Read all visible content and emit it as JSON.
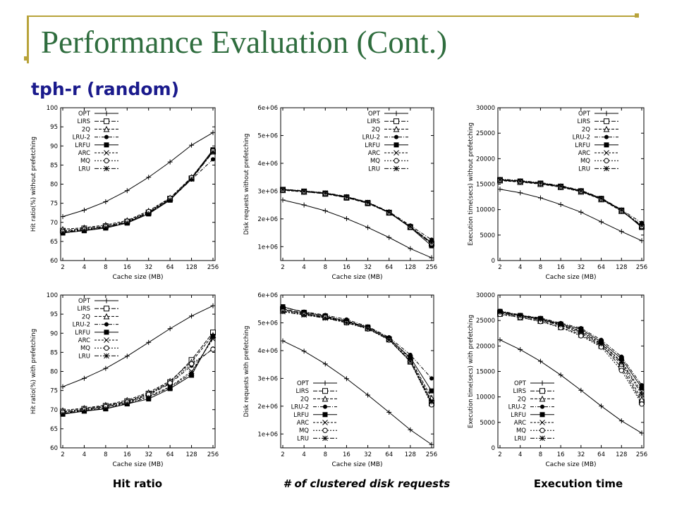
{
  "slide": {
    "title": "Performance Evaluation (Cont.)",
    "subtitle": "tph-r (random)",
    "captions": [
      "Hit ratio",
      "# of clustered disk requests",
      "Execution time"
    ]
  },
  "colors": {
    "title": "#2f6d3e",
    "subtitle": "#1a1a8c",
    "accent": "#b8a33a"
  },
  "legend_labels": [
    "OPT",
    "LIRS",
    "2Q",
    "LRU-2",
    "LRFU",
    "ARC",
    "MQ",
    "LRU"
  ],
  "chart_data": [
    {
      "id": "hit-no-prefetch",
      "type": "line",
      "xlabel": "Cache size (MB)",
      "ylabel": "Hit ratio(%) without prefetching",
      "categories": [
        "2",
        "4",
        "8",
        "16",
        "32",
        "64",
        "128",
        "256"
      ],
      "ylim": [
        60,
        100
      ],
      "yticks": [
        "60",
        "65",
        "70",
        "75",
        "80",
        "85",
        "90",
        "95",
        "100"
      ],
      "legend": "top-left",
      "series": [
        {
          "name": "OPT",
          "values": [
            71.5,
            73.2,
            75.4,
            78.3,
            81.8,
            85.8,
            90.2,
            93.5
          ]
        },
        {
          "name": "LIRS",
          "values": [
            67.8,
            68.4,
            69.0,
            70.2,
            72.6,
            76.2,
            81.5,
            88.5
          ]
        },
        {
          "name": "2Q",
          "values": [
            68.2,
            68.6,
            69.3,
            70.5,
            73.0,
            76.4,
            81.8,
            88.8
          ]
        },
        {
          "name": "LRU-2",
          "values": [
            67.5,
            68.0,
            68.8,
            70.0,
            72.4,
            76.0,
            81.2,
            86.5
          ]
        },
        {
          "name": "LRFU",
          "values": [
            67.2,
            67.8,
            68.5,
            69.8,
            72.2,
            75.8,
            81.6,
            89.0
          ]
        },
        {
          "name": "ARC",
          "values": [
            67.4,
            68.0,
            68.7,
            70.0,
            72.5,
            76.1,
            81.4,
            88.6
          ]
        },
        {
          "name": "MQ",
          "values": [
            67.6,
            68.2,
            68.9,
            70.3,
            72.8,
            76.3,
            81.7,
            88.7
          ]
        },
        {
          "name": "LRU",
          "values": [
            67.3,
            67.9,
            68.6,
            69.9,
            72.3,
            75.9,
            81.3,
            88.4
          ]
        }
      ]
    },
    {
      "id": "disk-no-prefetch",
      "type": "line",
      "xlabel": "Cache size (MB)",
      "ylabel": "Disk requests without prefetching",
      "categories": [
        "2",
        "4",
        "8",
        "16",
        "32",
        "64",
        "128",
        "256"
      ],
      "ylim": [
        500000,
        6000000
      ],
      "yticks": [
        "1e+06",
        "2e+06",
        "3e+06",
        "4e+06",
        "5e+06",
        "6e+06"
      ],
      "legend": "top-right",
      "series": [
        {
          "name": "OPT",
          "values": [
            2680000,
            2500000,
            2290000,
            2010000,
            1690000,
            1330000,
            930000,
            600000
          ]
        },
        {
          "name": "LIRS",
          "values": [
            3050000,
            2980000,
            2900000,
            2760000,
            2560000,
            2220000,
            1700000,
            1100000
          ]
        },
        {
          "name": "2Q",
          "values": [
            3030000,
            2970000,
            2910000,
            2780000,
            2580000,
            2240000,
            1720000,
            1150000
          ]
        },
        {
          "name": "LRU-2",
          "values": [
            3070000,
            3010000,
            2940000,
            2810000,
            2600000,
            2260000,
            1760000,
            1250000
          ]
        },
        {
          "name": "LRFU",
          "values": [
            3060000,
            3000000,
            2930000,
            2790000,
            2590000,
            2230000,
            1690000,
            1030000
          ]
        },
        {
          "name": "ARC",
          "values": [
            3050000,
            2990000,
            2920000,
            2780000,
            2580000,
            2230000,
            1710000,
            1120000
          ]
        },
        {
          "name": "MQ",
          "values": [
            3040000,
            2980000,
            2910000,
            2770000,
            2570000,
            2220000,
            1700000,
            1110000
          ]
        },
        {
          "name": "LRU",
          "values": [
            3060000,
            3000000,
            2930000,
            2790000,
            2590000,
            2240000,
            1720000,
            1140000
          ]
        }
      ]
    },
    {
      "id": "exec-no-prefetch",
      "type": "line",
      "xlabel": "Cache size (MB)",
      "ylabel": "Execution time(secs) without prefetching",
      "categories": [
        "2",
        "4",
        "8",
        "16",
        "32",
        "64",
        "128",
        "256"
      ],
      "ylim": [
        0,
        30000
      ],
      "yticks": [
        "0",
        "5000",
        "10000",
        "15000",
        "20000",
        "25000",
        "30000"
      ],
      "legend": "top-right",
      "series": [
        {
          "name": "OPT",
          "values": [
            14000,
            13300,
            12300,
            11000,
            9500,
            7600,
            5700,
            3900
          ]
        },
        {
          "name": "LIRS",
          "values": [
            15800,
            15500,
            15100,
            14500,
            13600,
            12100,
            9800,
            6600
          ]
        },
        {
          "name": "2Q",
          "values": [
            15700,
            15400,
            15000,
            14400,
            13500,
            12000,
            9700,
            6800
          ]
        },
        {
          "name": "LRU-2",
          "values": [
            16000,
            15700,
            15300,
            14700,
            13800,
            12300,
            10000,
            7400
          ]
        },
        {
          "name": "LRFU",
          "values": [
            15900,
            15600,
            15200,
            14600,
            13700,
            12200,
            9900,
            6500
          ]
        },
        {
          "name": "ARC",
          "values": [
            15800,
            15500,
            15100,
            14500,
            13600,
            12100,
            9800,
            6700
          ]
        },
        {
          "name": "MQ",
          "values": [
            15800,
            15500,
            15100,
            14500,
            13600,
            12100,
            9800,
            6700
          ]
        },
        {
          "name": "LRU",
          "values": [
            15900,
            15600,
            15200,
            14600,
            13700,
            12200,
            9900,
            6900
          ]
        }
      ]
    },
    {
      "id": "hit-prefetch",
      "type": "line",
      "xlabel": "Cache size (MB)",
      "ylabel": "Hit ratio(%) with prefetching",
      "categories": [
        "2",
        "4",
        "8",
        "16",
        "32",
        "64",
        "128",
        "256"
      ],
      "ylim": [
        60,
        100
      ],
      "yticks": [
        "60",
        "65",
        "70",
        "75",
        "80",
        "85",
        "90",
        "95",
        "100"
      ],
      "legend": "top-left",
      "series": [
        {
          "name": "OPT",
          "values": [
            76.0,
            78.2,
            80.8,
            84.0,
            87.6,
            91.2,
            94.5,
            97.2
          ]
        },
        {
          "name": "LIRS",
          "values": [
            69.5,
            70.2,
            71.0,
            72.2,
            74.2,
            77.2,
            83.0,
            90.2
          ]
        },
        {
          "name": "2Q",
          "values": [
            69.8,
            70.4,
            71.2,
            72.5,
            74.5,
            77.5,
            82.5,
            89.5
          ]
        },
        {
          "name": "LRU-2",
          "values": [
            69.2,
            69.9,
            70.8,
            72.0,
            73.8,
            76.8,
            81.5,
            86.0
          ]
        },
        {
          "name": "LRFU",
          "values": [
            68.8,
            69.6,
            70.2,
            71.5,
            72.8,
            75.5,
            79.0,
            89.2
          ]
        },
        {
          "name": "ARC",
          "values": [
            69.0,
            69.8,
            70.5,
            71.8,
            73.5,
            76.0,
            80.0,
            88.5
          ]
        },
        {
          "name": "MQ",
          "values": [
            69.3,
            70.0,
            70.8,
            72.0,
            74.0,
            77.0,
            82.0,
            85.8
          ]
        },
        {
          "name": "LRU",
          "values": [
            68.9,
            69.7,
            70.3,
            71.6,
            73.2,
            75.8,
            79.5,
            89.0
          ]
        }
      ]
    },
    {
      "id": "disk-prefetch",
      "type": "line",
      "xlabel": "Cache size (MB)",
      "ylabel": "Disk requests with prefetching",
      "categories": [
        "2",
        "4",
        "8",
        "16",
        "32",
        "64",
        "128",
        "256"
      ],
      "ylim": [
        500000,
        6000000
      ],
      "yticks": [
        "1e+06",
        "2e+06",
        "3e+06",
        "4e+06",
        "5e+06",
        "6e+06"
      ],
      "legend": "bottom-left",
      "series": [
        {
          "name": "OPT",
          "values": [
            4350000,
            3980000,
            3520000,
            2990000,
            2400000,
            1780000,
            1150000,
            620000
          ]
        },
        {
          "name": "LIRS",
          "values": [
            5500000,
            5350000,
            5200000,
            5050000,
            4800000,
            4400000,
            3600000,
            2100000
          ]
        },
        {
          "name": "2Q",
          "values": [
            5450000,
            5330000,
            5220000,
            5080000,
            4830000,
            4450000,
            3700000,
            2300000
          ]
        },
        {
          "name": "LRU-2",
          "values": [
            5550000,
            5400000,
            5280000,
            5120000,
            4870000,
            4480000,
            3850000,
            3000000
          ]
        },
        {
          "name": "LRFU",
          "values": [
            5580000,
            5380000,
            5250000,
            5050000,
            4850000,
            4430000,
            3750000,
            2550000
          ]
        },
        {
          "name": "ARC",
          "values": [
            5480000,
            5320000,
            5180000,
            5020000,
            4800000,
            4400000,
            3650000,
            2200000
          ]
        },
        {
          "name": "MQ",
          "values": [
            5420000,
            5300000,
            5200000,
            5000000,
            4780000,
            4380000,
            3600000,
            2050000
          ]
        },
        {
          "name": "LRU",
          "values": [
            5400000,
            5280000,
            5170000,
            5000000,
            4790000,
            4390000,
            3620000,
            2150000
          ]
        }
      ]
    },
    {
      "id": "exec-prefetch",
      "type": "line",
      "xlabel": "Cache size (MB)",
      "ylabel": "Execution time(secs) with prefetching",
      "categories": [
        "2",
        "4",
        "8",
        "16",
        "32",
        "64",
        "128",
        "256"
      ],
      "ylim": [
        0,
        30000
      ],
      "yticks": [
        "0",
        "5000",
        "10000",
        "15000",
        "20000",
        "25000",
        "30000"
      ],
      "legend": "bottom-left",
      "series": [
        {
          "name": "OPT",
          "values": [
            21200,
            19300,
            17000,
            14300,
            11300,
            8200,
            5300,
            2900
          ]
        },
        {
          "name": "LIRS",
          "values": [
            26500,
            25800,
            25100,
            24000,
            22500,
            20200,
            15800,
            9000
          ]
        },
        {
          "name": "2Q",
          "values": [
            26300,
            25600,
            24900,
            23700,
            22200,
            20000,
            16500,
            9500
          ]
        },
        {
          "name": "LRU-2",
          "values": [
            26900,
            26100,
            25500,
            24500,
            23500,
            21200,
            17900,
            12300
          ]
        },
        {
          "name": "LRFU",
          "values": [
            26800,
            26000,
            25400,
            24300,
            23300,
            20800,
            17500,
            11800
          ]
        },
        {
          "name": "ARC",
          "values": [
            26700,
            25900,
            25300,
            24200,
            23000,
            20500,
            17000,
            11000
          ]
        },
        {
          "name": "MQ",
          "values": [
            26200,
            25600,
            24800,
            23600,
            22000,
            19800,
            15200,
            8600
          ]
        },
        {
          "name": "LRU",
          "values": [
            26600,
            25900,
            25200,
            24100,
            22800,
            20400,
            16800,
            10500
          ]
        }
      ]
    }
  ]
}
